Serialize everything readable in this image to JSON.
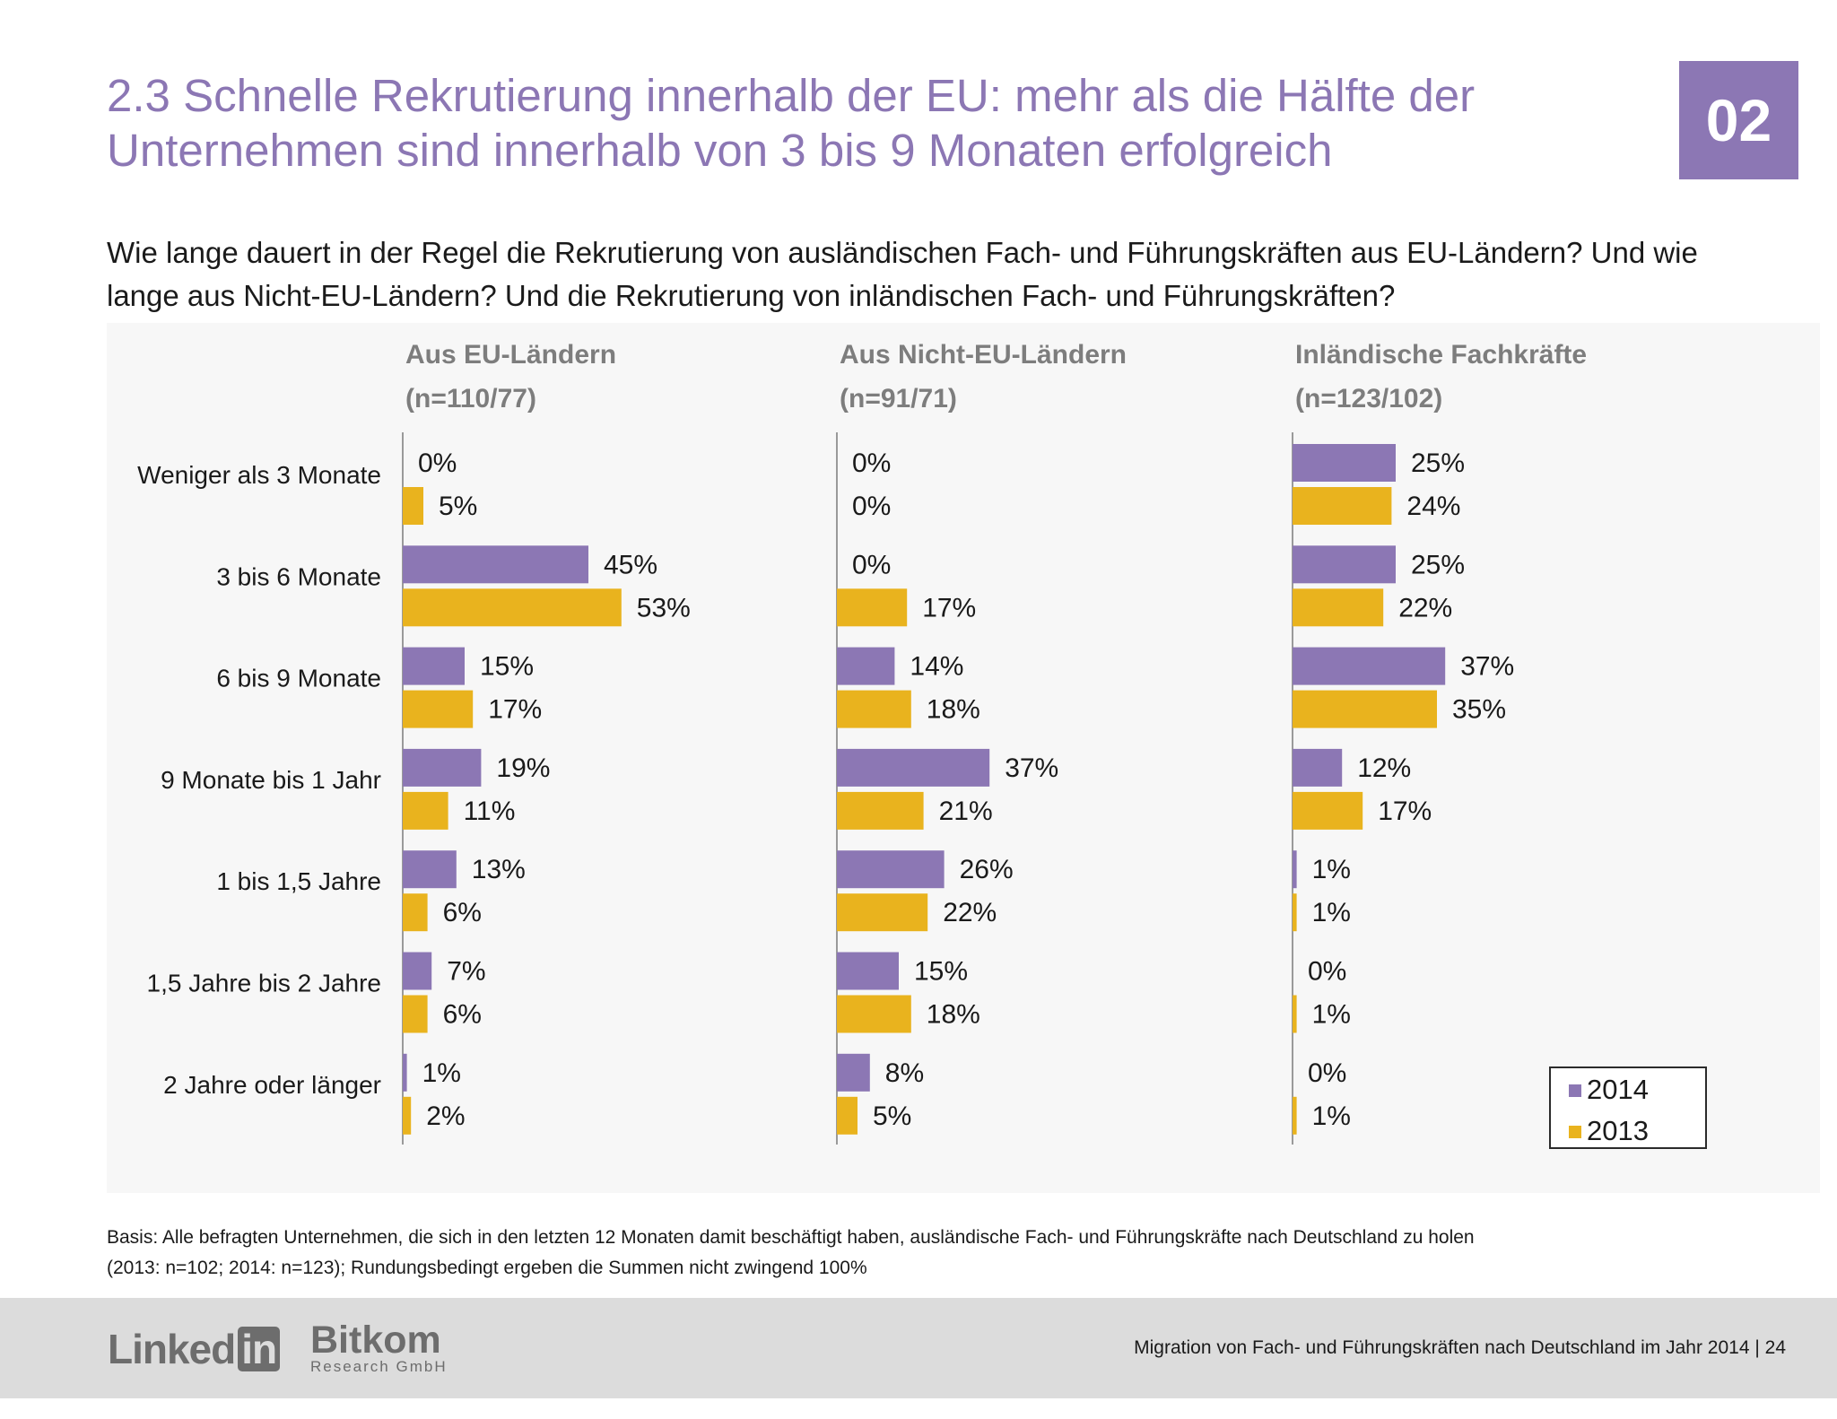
{
  "slide": {
    "title": "2.3 Schnelle Rekrutierung innerhalb der EU: mehr als die Hälfte der Unternehmen sind innerhalb von 3 bis 9 Monaten erfolgreich",
    "section_number": "02",
    "question": "Wie lange dauert in der Regel die Rekrutierung von ausländischen Fach- und Führungskräften aus EU-Ländern? Und wie lange aus Nicht-EU-Ländern? Und die Rekrutierung von inländischen Fach- und Führungskräften?",
    "footnote_line1": "Basis: Alle befragten Unternehmen, die sich in den letzten 12 Monaten damit beschäftigt haben, ausländische Fach- und Führungskräfte nach Deutschland zu holen",
    "footnote_line2": "(2013: n=102; 2014: n=123); Rundungsbedingt ergeben die Summen nicht zwingend 100%"
  },
  "footer": {
    "logo_linkedin_text": "Linked",
    "logo_linkedin_box": "in",
    "logo_bitkom_main": "Bitkom",
    "logo_bitkom_sub": "Research GmbH",
    "text": "Migration von Fach- und Führungskräften nach Deutschland im Jahr 2014  |  24"
  },
  "colors": {
    "series_2014": "#8c77b4",
    "series_2013": "#e9b31e",
    "accent": "#8c77b4"
  },
  "chart_data": {
    "type": "bar",
    "orientation": "horizontal",
    "categories": [
      "Weniger als 3 Monate",
      "3 bis 6 Monate",
      "6 bis 9 Monate",
      "9 Monate bis 1 Jahr",
      "1 bis 1,5 Jahre",
      "1,5 Jahre bis 2 Jahre",
      "2 Jahre oder länger"
    ],
    "legend": {
      "position": "bottom-right",
      "items": [
        "2014",
        "2013"
      ]
    },
    "value_suffix": "%",
    "panels": [
      {
        "title": "Aus EU-Ländern",
        "n": "(n=110/77)",
        "series": [
          {
            "name": "2014",
            "values": [
              0,
              45,
              15,
              19,
              13,
              7,
              1
            ]
          },
          {
            "name": "2013",
            "values": [
              5,
              53,
              17,
              11,
              6,
              6,
              2
            ]
          }
        ]
      },
      {
        "title": "Aus Nicht-EU-Ländern",
        "n": "(n=91/71)",
        "series": [
          {
            "name": "2014",
            "values": [
              0,
              0,
              14,
              37,
              26,
              15,
              8
            ]
          },
          {
            "name": "2013",
            "values": [
              0,
              17,
              18,
              21,
              22,
              18,
              5
            ]
          }
        ]
      },
      {
        "title": "Inländische Fachkräfte",
        "n": "(n=123/102)",
        "series": [
          {
            "name": "2014",
            "values": [
              25,
              25,
              37,
              12,
              1,
              0,
              0
            ]
          },
          {
            "name": "2013",
            "values": [
              24,
              22,
              35,
              17,
              1,
              1,
              1
            ]
          }
        ]
      }
    ]
  }
}
